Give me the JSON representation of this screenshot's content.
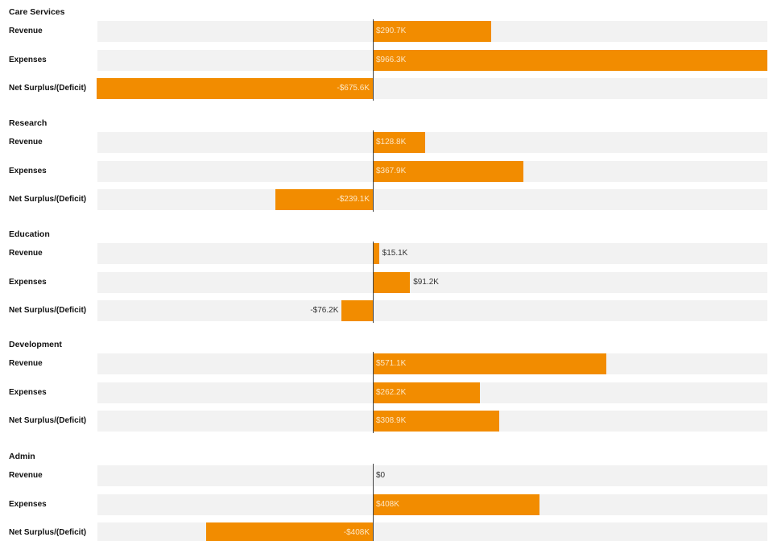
{
  "chart_data": {
    "type": "bar",
    "orientation": "horizontal",
    "diverging": true,
    "bar_color": "#f28c00",
    "track_color": "#f2f2f2",
    "zero_line_color": "#444444",
    "xlim": [
      -1000000,
      1430000
    ],
    "groups": [
      {
        "title": "Care Services",
        "rows": [
          {
            "label": "Revenue",
            "value": 290700,
            "display": "$290.7K"
          },
          {
            "label": "Expenses",
            "value": 966300,
            "display": "$966.3K"
          },
          {
            "label": "Net Surplus/(Deficit)",
            "value": -675600,
            "display": "-$675.6K"
          }
        ]
      },
      {
        "title": "Research",
        "rows": [
          {
            "label": "Revenue",
            "value": 128800,
            "display": "$128.8K"
          },
          {
            "label": "Expenses",
            "value": 367900,
            "display": "$367.9K"
          },
          {
            "label": "Net Surplus/(Deficit)",
            "value": -239100,
            "display": "-$239.1K"
          }
        ]
      },
      {
        "title": "Education",
        "rows": [
          {
            "label": "Revenue",
            "value": 15100,
            "display": "$15.1K"
          },
          {
            "label": "Expenses",
            "value": 91200,
            "display": "$91.2K"
          },
          {
            "label": "Net Surplus/(Deficit)",
            "value": -76200,
            "display": "-$76.2K"
          }
        ]
      },
      {
        "title": "Development",
        "rows": [
          {
            "label": "Revenue",
            "value": 571100,
            "display": "$571.1K"
          },
          {
            "label": "Expenses",
            "value": 262200,
            "display": "$262.2K"
          },
          {
            "label": "Net Surplus/(Deficit)",
            "value": 308900,
            "display": "$308.9K"
          }
        ]
      },
      {
        "title": "Admin",
        "rows": [
          {
            "label": "Revenue",
            "value": 0,
            "display": "$0"
          },
          {
            "label": "Expenses",
            "value": 408000,
            "display": "$408K"
          },
          {
            "label": "Net Surplus/(Deficit)",
            "value": -408000,
            "display": "-$408K"
          }
        ]
      }
    ]
  }
}
